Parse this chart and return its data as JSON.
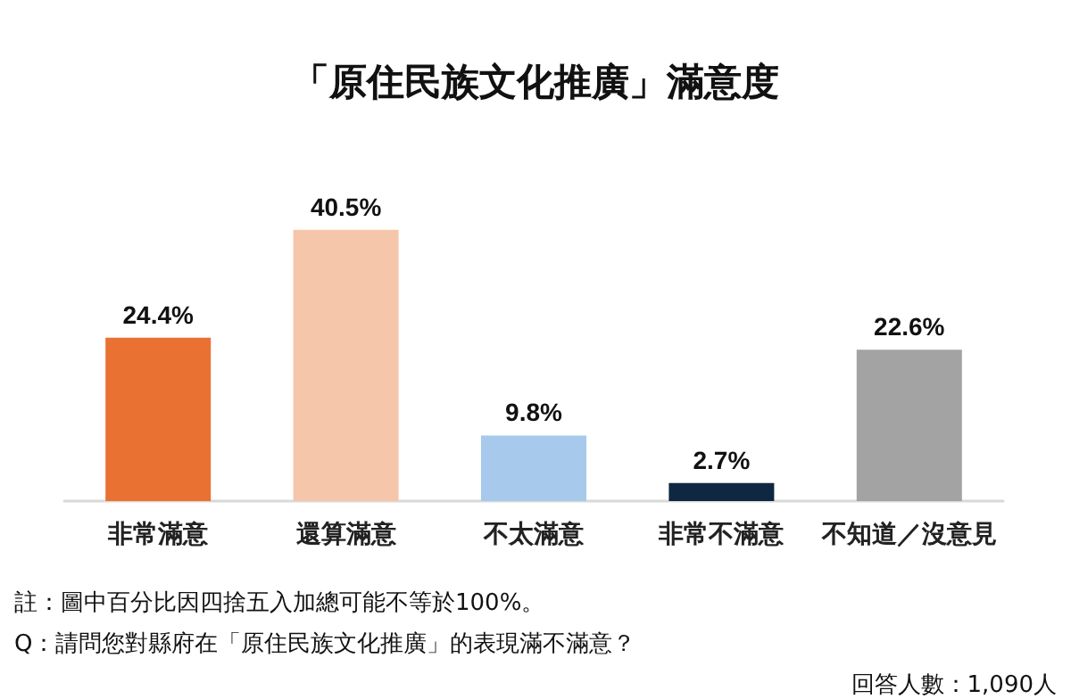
{
  "chart_data": {
    "type": "bar",
    "title": "「原住民族文化推廣」滿意度",
    "categories": [
      "非常滿意",
      "還算滿意",
      "不太滿意",
      "非常不滿意",
      "不知道／沒意見"
    ],
    "values": [
      24.4,
      40.5,
      9.8,
      2.7,
      22.6
    ],
    "colors": [
      "#e97132",
      "#f5c6aa",
      "#a6c9ec",
      "#0e2841",
      "#a3a3a3"
    ],
    "value_labels": [
      "24.4%",
      "40.5%",
      "9.8%",
      "2.7%",
      "22.6%"
    ],
    "tick_labels": "x",
    "annotations": [
      "註：圖中百分比因四捨五入加總可能不等於100%。",
      "Q：請問您對縣府在「原住民族文化推廣」的表現滿不滿意？",
      "回答人數：1,090人"
    ]
  }
}
